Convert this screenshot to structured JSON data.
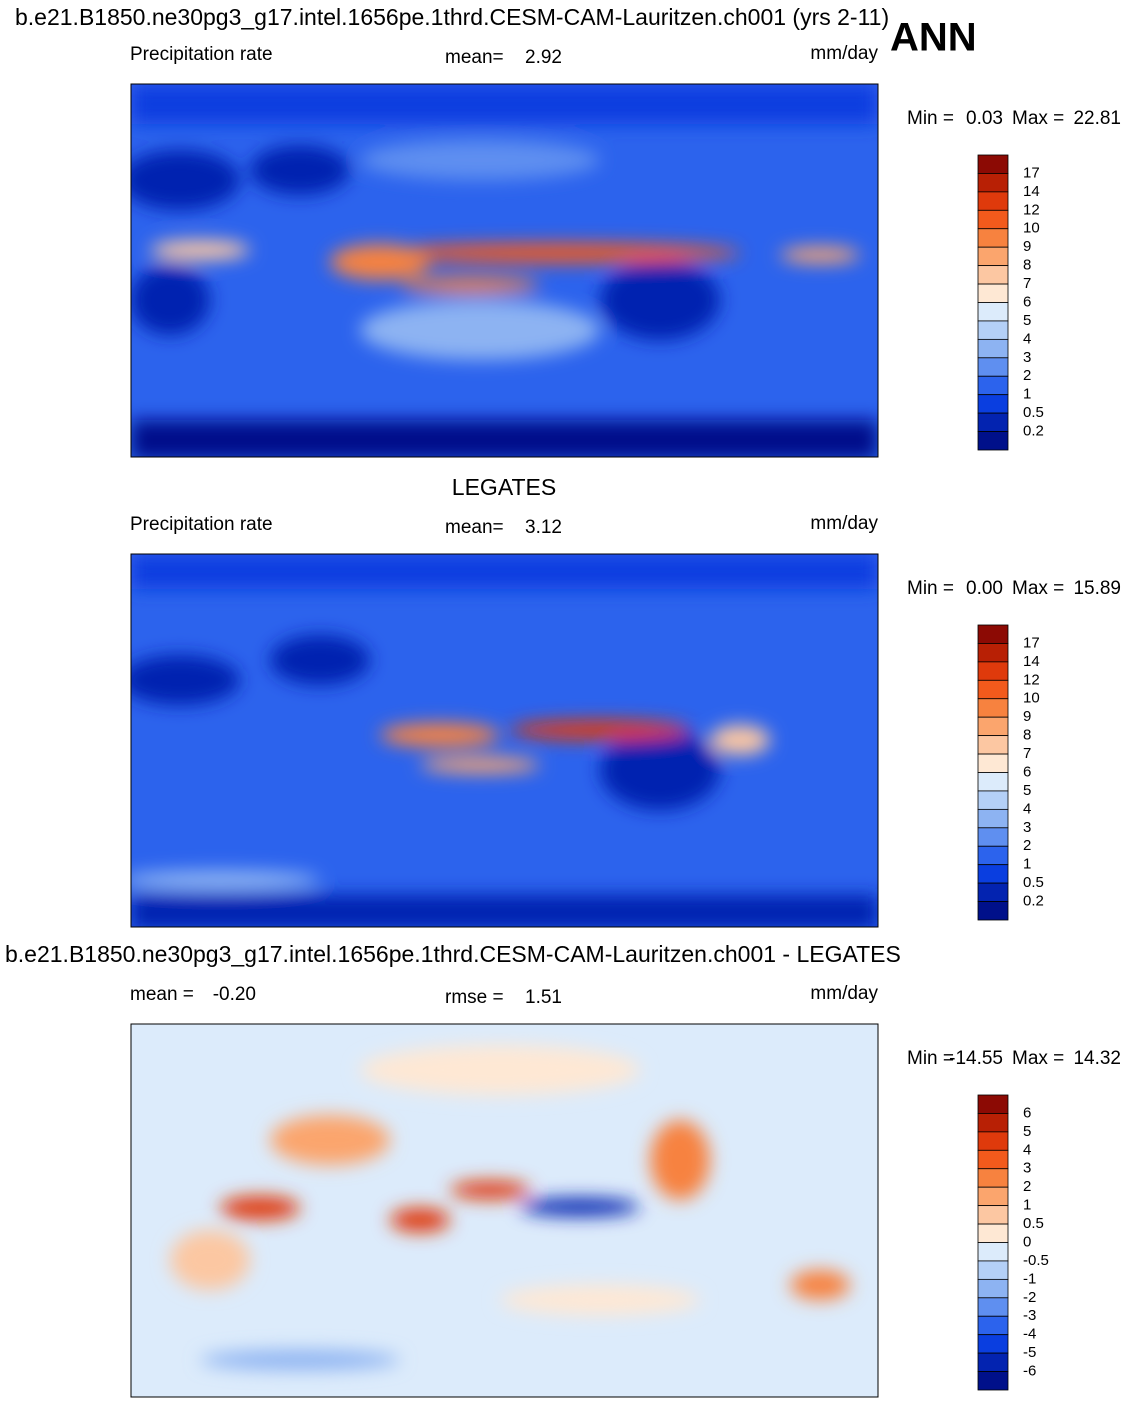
{
  "header": {
    "title": "b.e21.B1850.ne30pg3_g17.intel.1656pe.1thrd.CESM-CAM-Lauritzen.ch001 (yrs 2-11)",
    "season": "ANN"
  },
  "panels": [
    {
      "left_label": "Precipitation rate",
      "stat_label": "mean=",
      "stat_value": 2.92,
      "units": "mm/day",
      "min_label": "Min =",
      "min": 0.03,
      "max_label": "Max =",
      "max": 22.81,
      "colorbar": {
        "labels": [
          17,
          14,
          12,
          10,
          9,
          8,
          7,
          6,
          5,
          4,
          3,
          2,
          1,
          0.5,
          0.2
        ],
        "colors": [
          "#8c0a04",
          "#b82005",
          "#df3a0c",
          "#f25a1c",
          "#f7823f",
          "#fba56d",
          "#fcc7a2",
          "#fee8d4",
          "#dcebfb",
          "#b4d0f7",
          "#8db3f2",
          "#5f8ff0",
          "#2c63ed",
          "#0a3ee0",
          "#0323b0",
          "#00108a"
        ]
      }
    },
    {
      "title": "LEGATES",
      "left_label": "Precipitation rate",
      "stat_label": "mean=",
      "stat_value": 3.12,
      "units": "mm/day",
      "min_label": "Min =",
      "min": "0.00",
      "max_label": "Max =",
      "max": 15.89,
      "colorbar": {
        "labels": [
          17,
          14,
          12,
          10,
          9,
          8,
          7,
          6,
          5,
          4,
          3,
          2,
          1,
          0.5,
          0.2
        ],
        "colors": [
          "#8c0a04",
          "#b82005",
          "#df3a0c",
          "#f25a1c",
          "#f7823f",
          "#fba56d",
          "#fcc7a2",
          "#fee8d4",
          "#dcebfb",
          "#b4d0f7",
          "#8db3f2",
          "#5f8ff0",
          "#2c63ed",
          "#0a3ee0",
          "#0323b0",
          "#00108a"
        ]
      }
    },
    {
      "title": "b.e21.B1850.ne30pg3_g17.intel.1656pe.1thrd.CESM-CAM-Lauritzen.ch001 - LEGATES",
      "left_label": "mean =",
      "left_value": "-0.20",
      "stat_label": "rmse =",
      "stat_value": 1.51,
      "units": "mm/day",
      "min_label": "Min =",
      "min": -14.55,
      "max_label": "Max =",
      "max": 14.32,
      "colorbar": {
        "labels": [
          6,
          5,
          4,
          3,
          2,
          1,
          0.5,
          0,
          -0.5,
          -1,
          -2,
          -3,
          -4,
          -5,
          -6
        ],
        "colors": [
          "#8c0a04",
          "#b82005",
          "#df3a0c",
          "#f25a1c",
          "#f7823f",
          "#fba56d",
          "#fcc7a2",
          "#fee8d4",
          "#dcebfb",
          "#b4d0f7",
          "#8db3f2",
          "#5f8ff0",
          "#2c63ed",
          "#0a3ee0",
          "#0323b0",
          "#00108a"
        ]
      }
    }
  ]
}
